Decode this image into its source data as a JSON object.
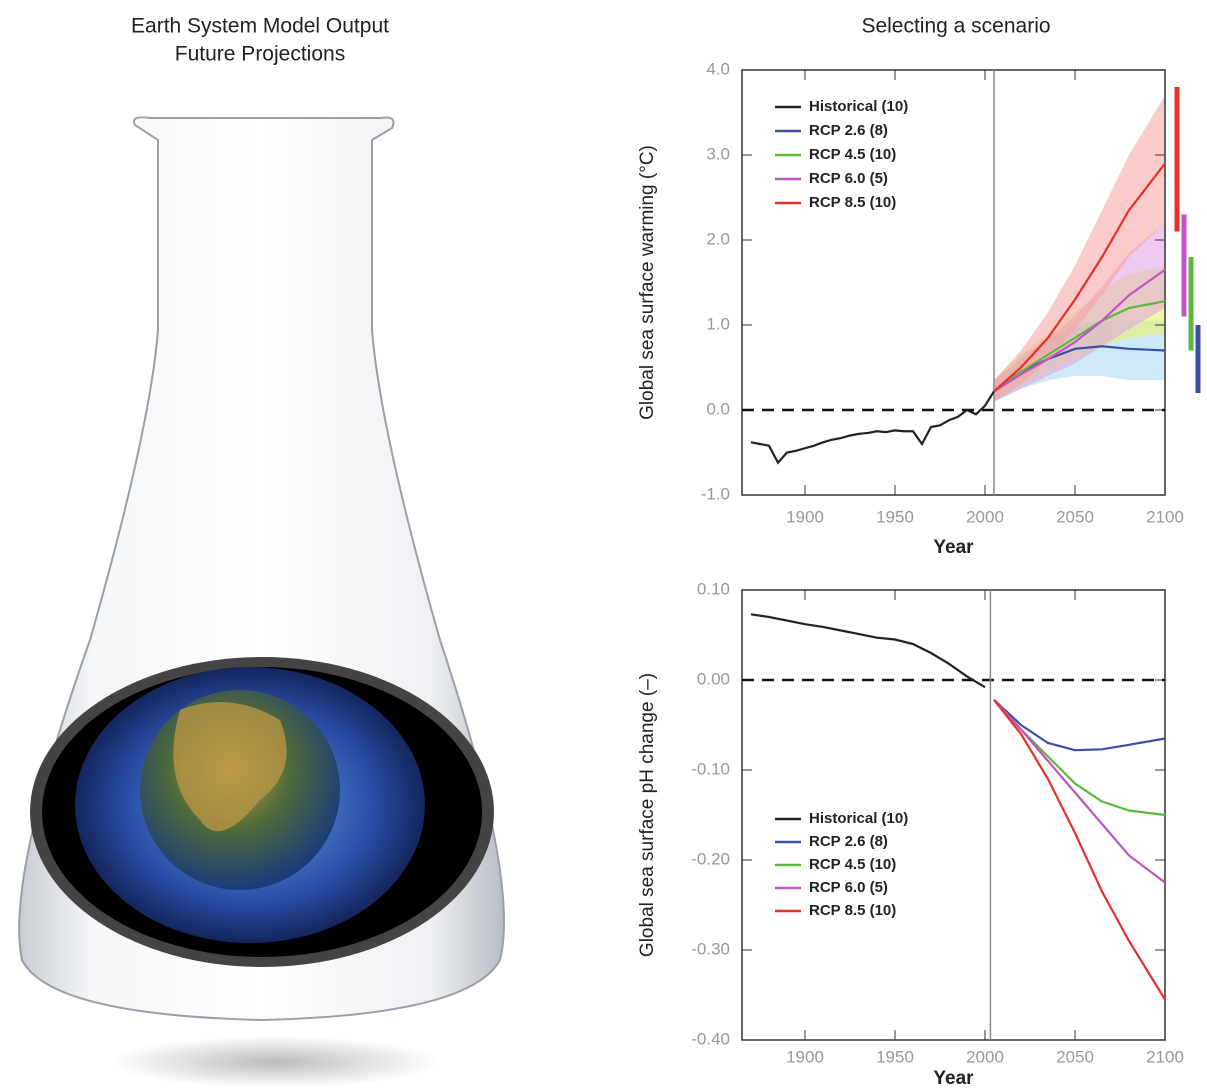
{
  "illustration": {
    "title_lines": [
      "Earth System Model Output",
      "Future Projections"
    ]
  },
  "panel_title": "Selecting a scenario",
  "chart_data": [
    {
      "type": "line",
      "y_label": "Global sea surface warming (°C)",
      "x_label": "Year",
      "xlim": [
        1865,
        2100
      ],
      "ylim": [
        -1.0,
        4.0
      ],
      "xticks": [
        1900,
        1950,
        2000,
        2050,
        2100
      ],
      "yticks": [
        {
          "value": -1,
          "label": "-1.0"
        },
        {
          "value": 0,
          "label": "0.0"
        },
        {
          "value": 1,
          "label": "1.0"
        },
        {
          "value": 2,
          "label": "2.0"
        },
        {
          "value": 3,
          "label": "3.0"
        },
        {
          "value": 4,
          "label": "4.0"
        }
      ],
      "reference_y": 0,
      "divider_x": 2005,
      "legend": "upper left",
      "series": [
        {
          "name": "Historical (10)",
          "color": "#222222",
          "x": [
            1870,
            1875,
            1880,
            1885,
            1890,
            1895,
            1900,
            1905,
            1910,
            1915,
            1920,
            1925,
            1930,
            1935,
            1940,
            1945,
            1950,
            1955,
            1960,
            1965,
            1970,
            1975,
            1980,
            1985,
            1990,
            1995,
            2000,
            2005
          ],
          "values": [
            -0.38,
            -0.4,
            -0.42,
            -0.62,
            -0.5,
            -0.48,
            -0.45,
            -0.42,
            -0.38,
            -0.35,
            -0.33,
            -0.3,
            -0.28,
            -0.27,
            -0.25,
            -0.26,
            -0.24,
            -0.25,
            -0.25,
            -0.4,
            -0.2,
            -0.18,
            -0.12,
            -0.08,
            0.0,
            -0.05,
            0.05,
            0.22
          ]
        },
        {
          "name": "RCP 2.6 (8)",
          "color": "#3a4fa8",
          "band_color": "#a8d8f0",
          "x": [
            2005,
            2020,
            2035,
            2050,
            2065,
            2080,
            2100
          ],
          "values": [
            0.22,
            0.45,
            0.6,
            0.72,
            0.75,
            0.72,
            0.7
          ],
          "lower": [
            0.1,
            0.25,
            0.35,
            0.4,
            0.4,
            0.35,
            0.35
          ],
          "upper": [
            0.35,
            0.65,
            0.85,
            1.0,
            1.05,
            1.05,
            1.05
          ],
          "range_2100": [
            0.2,
            1.0
          ]
        },
        {
          "name": "RCP 4.5 (10)",
          "color": "#5cb83a",
          "band_color": "#e8f060",
          "x": [
            2005,
            2020,
            2035,
            2050,
            2065,
            2080,
            2100
          ],
          "values": [
            0.22,
            0.45,
            0.65,
            0.85,
            1.05,
            1.2,
            1.28
          ],
          "lower": [
            0.1,
            0.3,
            0.45,
            0.6,
            0.75,
            0.85,
            0.9
          ],
          "upper": [
            0.35,
            0.65,
            0.9,
            1.15,
            1.4,
            1.6,
            1.7
          ],
          "range_2100": [
            0.7,
            1.8
          ]
        },
        {
          "name": "RCP 6.0 (5)",
          "color": "#c154c1",
          "band_color": "#e0a0e0",
          "x": [
            2005,
            2020,
            2035,
            2050,
            2065,
            2080,
            2100
          ],
          "values": [
            0.22,
            0.42,
            0.6,
            0.8,
            1.05,
            1.35,
            1.65
          ],
          "lower": [
            0.1,
            0.25,
            0.4,
            0.55,
            0.75,
            0.95,
            1.2
          ],
          "upper": [
            0.35,
            0.6,
            0.85,
            1.1,
            1.45,
            1.85,
            2.2
          ],
          "range_2100": [
            1.1,
            2.3
          ]
        },
        {
          "name": "RCP 8.5 (10)",
          "color": "#e8302a",
          "band_color": "#f8a0a0",
          "x": [
            2005,
            2020,
            2035,
            2050,
            2065,
            2080,
            2100
          ],
          "values": [
            0.22,
            0.5,
            0.85,
            1.3,
            1.8,
            2.35,
            2.9
          ],
          "lower": [
            0.1,
            0.3,
            0.6,
            0.95,
            1.35,
            1.8,
            2.2
          ],
          "upper": [
            0.35,
            0.7,
            1.15,
            1.7,
            2.35,
            3.0,
            3.7
          ],
          "range_2100": [
            2.1,
            3.8
          ]
        }
      ]
    },
    {
      "type": "line",
      "y_label": "Global sea surface pH change (–)",
      "x_label": "Year",
      "xlim": [
        1865,
        2100
      ],
      "ylim": [
        -0.4,
        0.1
      ],
      "xticks": [
        1900,
        1950,
        2000,
        2050,
        2100
      ],
      "yticks": [
        {
          "value": 0.1,
          "label": "0.10"
        },
        {
          "value": 0,
          "label": "0.00"
        },
        {
          "value": -0.1,
          "label": "-0.10"
        },
        {
          "value": -0.2,
          "label": "-0.20"
        },
        {
          "value": -0.3,
          "label": "-0.30"
        },
        {
          "value": -0.4,
          "label": "-0.40"
        }
      ],
      "reference_y": 0,
      "divider_x": 2003,
      "legend": "lower left",
      "series": [
        {
          "name": "Historical (10)",
          "color": "#222222",
          "x": [
            1870,
            1880,
            1890,
            1900,
            1910,
            1920,
            1930,
            1940,
            1950,
            1960,
            1970,
            1980,
            1990,
            2000
          ],
          "values": [
            0.073,
            0.07,
            0.066,
            0.062,
            0.059,
            0.055,
            0.051,
            0.047,
            0.045,
            0.04,
            0.03,
            0.018,
            0.004,
            -0.008
          ]
        },
        {
          "name": "RCP 2.6 (8)",
          "color": "#3a4fa8",
          "x": [
            2005,
            2020,
            2035,
            2050,
            2065,
            2080,
            2100
          ],
          "values": [
            -0.022,
            -0.05,
            -0.07,
            -0.078,
            -0.077,
            -0.072,
            -0.065
          ]
        },
        {
          "name": "RCP 4.5 (10)",
          "color": "#5cb83a",
          "x": [
            2005,
            2020,
            2035,
            2050,
            2065,
            2080,
            2100
          ],
          "values": [
            -0.022,
            -0.055,
            -0.085,
            -0.115,
            -0.135,
            -0.145,
            -0.15
          ]
        },
        {
          "name": "RCP 6.0 (5)",
          "color": "#c154c1",
          "x": [
            2005,
            2020,
            2035,
            2050,
            2065,
            2080,
            2100
          ],
          "values": [
            -0.022,
            -0.055,
            -0.09,
            -0.125,
            -0.16,
            -0.195,
            -0.225
          ]
        },
        {
          "name": "RCP 8.5 (10)",
          "color": "#e8302a",
          "x": [
            2005,
            2020,
            2035,
            2050,
            2065,
            2080,
            2100
          ],
          "values": [
            -0.022,
            -0.06,
            -0.11,
            -0.17,
            -0.235,
            -0.29,
            -0.355
          ]
        }
      ]
    }
  ]
}
